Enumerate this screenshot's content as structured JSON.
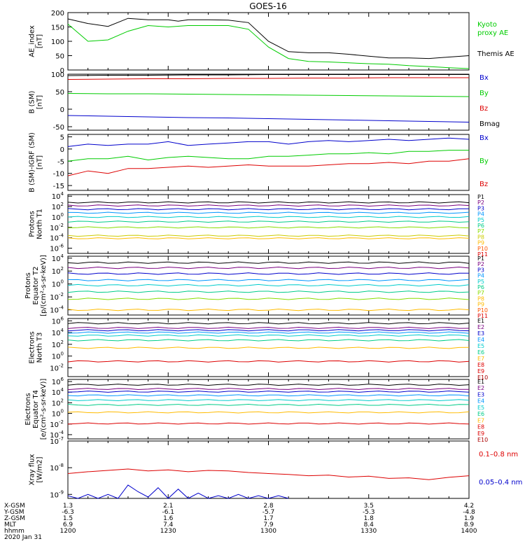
{
  "title": "GOES-16",
  "colors": {
    "black": "#000000",
    "red": "#dd0000",
    "green": "#00cc00",
    "blue": "#0000cc"
  },
  "time_axis": {
    "hhmm": [
      "1200",
      "1230",
      "1300",
      "1330",
      "1400"
    ],
    "footer_rows": [
      {
        "label": "X-GSM",
        "values": [
          "1.3",
          "2.1",
          "2.8",
          "3.5",
          "4.2"
        ]
      },
      {
        "label": "Y-GSM",
        "values": [
          "-6.3",
          "-6.1",
          "-5.7",
          "-5.3",
          "-4.8"
        ]
      },
      {
        "label": "Z-GSM",
        "values": [
          "1.5",
          "1.6",
          "1.7",
          "1.8",
          "1.9"
        ]
      },
      {
        "label": "MLT",
        "values": [
          "6.9",
          "7.4",
          "7.9",
          "8.4",
          "8.9"
        ]
      },
      {
        "label": "hhmm",
        "values": [
          "1200",
          "1230",
          "1300",
          "1330",
          "1400"
        ]
      }
    ],
    "date": "2020 Jan 31"
  },
  "chart_data": [
    {
      "type": "line",
      "ylabel": [
        "AE_index",
        "[nT]"
      ],
      "ylim": [
        0,
        200
      ],
      "yticks": [
        "0",
        "50",
        "100",
        "150",
        "200"
      ],
      "series": [
        {
          "name": "Themis AE",
          "color": "#000000",
          "x": [
            1200,
            1210,
            1220,
            1230,
            1240,
            1250,
            1255,
            1260,
            1270,
            1280,
            1290,
            1300,
            1310,
            1320,
            1330,
            1340,
            1350,
            1360,
            1370,
            1380,
            1390,
            1400
          ],
          "y": [
            178,
            162,
            152,
            180,
            175,
            175,
            170,
            175,
            175,
            174,
            165,
            100,
            64,
            60,
            60,
            55,
            48,
            42,
            42,
            40,
            45,
            50
          ]
        },
        {
          "name": "Kyoto proxy AE",
          "color": "#00cc00",
          "x": [
            1200,
            1210,
            1220,
            1230,
            1240,
            1250,
            1260,
            1270,
            1280,
            1290,
            1300,
            1310,
            1320,
            1330,
            1340,
            1350,
            1360,
            1370,
            1380,
            1390,
            1400
          ],
          "y": [
            160,
            100,
            105,
            135,
            155,
            150,
            155,
            155,
            155,
            142,
            80,
            40,
            30,
            28,
            25,
            22,
            20,
            15,
            12,
            8,
            5
          ]
        }
      ],
      "legend": [
        "Kyoto proxy AE",
        "Themis AE"
      ]
    },
    {
      "type": "line",
      "ylabel": [
        "B (SM)",
        "[nT]"
      ],
      "ylim": [
        -60,
        100
      ],
      "yticks": [
        "-50",
        "0",
        "50",
        "100"
      ],
      "series": [
        {
          "name": "Bx",
          "color": "#0000cc",
          "x": [
            1200,
            1220,
            1240,
            1260,
            1280,
            1300,
            1320,
            1340,
            1360,
            1380,
            1400
          ],
          "y": [
            -18,
            -20,
            -22,
            -24,
            -25,
            -27,
            -29,
            -31,
            -33,
            -35,
            -37
          ]
        },
        {
          "name": "By",
          "color": "#00cc00",
          "x": [
            1200,
            1220,
            1240,
            1260,
            1280,
            1300,
            1320,
            1340,
            1360,
            1380,
            1400
          ],
          "y": [
            45,
            44,
            44,
            43,
            42,
            41,
            40,
            39,
            38,
            37,
            36
          ]
        },
        {
          "name": "Bz",
          "color": "#dd0000",
          "x": [
            1200,
            1220,
            1240,
            1260,
            1280,
            1300,
            1320,
            1340,
            1360,
            1380,
            1400
          ],
          "y": [
            85,
            86,
            87,
            87,
            88,
            88,
            89,
            89,
            90,
            90,
            90
          ]
        },
        {
          "name": "Bmag",
          "color": "#000000",
          "x": [
            1200,
            1220,
            1240,
            1260,
            1280,
            1300,
            1320,
            1340,
            1360,
            1380,
            1400
          ],
          "y": [
            96,
            97,
            97,
            98,
            98,
            99,
            99,
            99,
            99,
            99,
            99
          ]
        }
      ],
      "legend": [
        "Bx",
        "By",
        "Bz",
        "Bmag"
      ]
    },
    {
      "type": "line",
      "ylabel": [
        "B (SM)-IGRF (SM)",
        "[nT]"
      ],
      "ylim": [
        -17,
        6
      ],
      "yticks": [
        "-15",
        "-10",
        "-5",
        "0",
        "5"
      ],
      "series": [
        {
          "name": "Bx",
          "color": "#0000cc",
          "x": [
            1200,
            1210,
            1220,
            1230,
            1240,
            1250,
            1260,
            1270,
            1280,
            1290,
            1300,
            1310,
            1320,
            1330,
            1340,
            1350,
            1360,
            1370,
            1380,
            1390,
            1400
          ],
          "y": [
            1,
            2,
            1.5,
            2,
            2,
            3,
            1.5,
            2,
            2.5,
            3,
            3,
            2,
            3,
            3.5,
            3,
            3.5,
            4,
            3.5,
            4,
            4.5,
            4
          ]
        },
        {
          "name": "By",
          "color": "#00cc00",
          "x": [
            1200,
            1210,
            1220,
            1230,
            1240,
            1250,
            1260,
            1270,
            1280,
            1290,
            1300,
            1310,
            1320,
            1330,
            1340,
            1350,
            1360,
            1370,
            1380,
            1390,
            1400
          ],
          "y": [
            -5,
            -4,
            -4,
            -3,
            -4.5,
            -3.5,
            -3,
            -3.5,
            -4,
            -4,
            -3,
            -3,
            -2.5,
            -2,
            -2,
            -1.5,
            -2,
            -1,
            -1,
            -0.5,
            -0.5
          ]
        },
        {
          "name": "Bz",
          "color": "#dd0000",
          "x": [
            1200,
            1210,
            1220,
            1230,
            1240,
            1250,
            1260,
            1270,
            1280,
            1290,
            1300,
            1310,
            1320,
            1330,
            1340,
            1350,
            1360,
            1370,
            1380,
            1390,
            1400
          ],
          "y": [
            -11,
            -9,
            -10,
            -8,
            -8,
            -7.5,
            -7,
            -7.5,
            -7,
            -6.5,
            -7,
            -7,
            -7,
            -6.5,
            -6,
            -6,
            -5.5,
            -6,
            -5,
            -5,
            -4
          ]
        }
      ],
      "legend": [
        "Bx",
        "By",
        "Bz"
      ]
    },
    {
      "type": "line",
      "scale": "log",
      "ylabel": [
        "Protons",
        "North T1"
      ],
      "yrange_log": [
        -7,
        4.3
      ],
      "yticks_exp": [
        "4",
        "2",
        "0",
        "-2",
        "-4",
        "-6"
      ],
      "series": [
        {
          "name": "P1",
          "color": "#000000",
          "levels": [
            2.8
          ]
        },
        {
          "name": "P2",
          "color": "#7a0080",
          "levels": [
            2.2
          ]
        },
        {
          "name": "P3",
          "color": "#0000cc",
          "levels": [
            1.5
          ]
        },
        {
          "name": "P4",
          "color": "#0096ff",
          "levels": [
            0.8
          ]
        },
        {
          "name": "P5",
          "color": "#00cccc",
          "levels": [
            0.0
          ]
        },
        {
          "name": "P6",
          "color": "#00cc88",
          "levels": [
            -0.9
          ]
        },
        {
          "name": "P7",
          "color": "#88dd00",
          "levels": [
            -2.0
          ]
        },
        {
          "name": "P8",
          "color": "#cccc00",
          "levels": [
            -3.6
          ]
        },
        {
          "name": "P9",
          "color": "#ffbb00",
          "levels": [
            -4.1
          ]
        }
      ],
      "legend": [
        "P1",
        "P2",
        "P3",
        "P4",
        "P5",
        "P6",
        "P7",
        "P8",
        "P9",
        "P10",
        "P11"
      ]
    },
    {
      "type": "line",
      "scale": "log",
      "ylabel": [
        "Protons",
        "Equator T2",
        "[p/(cm²-s-sr-keV)]"
      ],
      "yrange_log": [
        -4.8,
        4.3
      ],
      "yticks_exp": [
        "4",
        "2",
        "0",
        "-2",
        "-4"
      ],
      "series": [
        {
          "name": "P1",
          "color": "#000000",
          "levels": [
            3.3
          ]
        },
        {
          "name": "P2",
          "color": "#7a0080",
          "levels": [
            2.5
          ]
        },
        {
          "name": "P3",
          "color": "#0000cc",
          "levels": [
            1.6
          ]
        },
        {
          "name": "P4",
          "color": "#0096ff",
          "levels": [
            0.6
          ]
        },
        {
          "name": "P5",
          "color": "#00cccc",
          "levels": [
            -0.2
          ]
        },
        {
          "name": "P6",
          "color": "#00cc88",
          "levels": [
            -1.2
          ]
        },
        {
          "name": "P7",
          "color": "#88dd00",
          "levels": [
            -2.3
          ]
        },
        {
          "name": "P8",
          "color": "#ffbb00",
          "levels": [
            -4.0
          ]
        }
      ],
      "legend": [
        "P1",
        "P2",
        "P3",
        "P4",
        "P5",
        "P6",
        "P7",
        "P8",
        "P9",
        "P10",
        "P11"
      ]
    },
    {
      "type": "line",
      "scale": "log",
      "ylabel": [
        "Electrons",
        "North T3"
      ],
      "yrange_log": [
        -3.5,
        6.4
      ],
      "yticks_exp": [
        "6",
        "4",
        "2",
        "0",
        "-2"
      ],
      "series": [
        {
          "name": "E1",
          "color": "#000000",
          "levels": [
            5.6
          ]
        },
        {
          "name": "E2",
          "color": "#7a0080",
          "levels": [
            4.8
          ]
        },
        {
          "name": "E3",
          "color": "#0000cc",
          "levels": [
            4.4
          ]
        },
        {
          "name": "E4",
          "color": "#0096ff",
          "levels": [
            4.0
          ]
        },
        {
          "name": "E5",
          "color": "#00cccc",
          "levels": [
            3.5
          ]
        },
        {
          "name": "E6",
          "color": "#00cc88",
          "levels": [
            2.7
          ]
        },
        {
          "name": "E7",
          "color": "#ffbb00",
          "levels": [
            1.4
          ]
        },
        {
          "name": "E8",
          "color": "#dd0000",
          "levels": [
            -0.9
          ]
        }
      ],
      "legend": [
        "E1",
        "E2",
        "E3",
        "E4",
        "E5",
        "E6",
        "E7",
        "E8",
        "E9",
        "E10"
      ]
    },
    {
      "type": "line",
      "scale": "log",
      "ylabel": [
        "Electrons",
        "Equator T4",
        "[e/(cm²-s-sr-keV)]"
      ],
      "yrange_log": [
        -4.8,
        6.4
      ],
      "yticks_exp": [
        "6",
        "4",
        "2",
        "0",
        "-2",
        "-4"
      ],
      "series": [
        {
          "name": "E1",
          "color": "#000000",
          "levels": [
            5.4
          ]
        },
        {
          "name": "E2",
          "color": "#7a0080",
          "levels": [
            4.6
          ]
        },
        {
          "name": "E3",
          "color": "#0000cc",
          "levels": [
            4.1
          ]
        },
        {
          "name": "E4",
          "color": "#0096ff",
          "levels": [
            3.4
          ]
        },
        {
          "name": "E5",
          "color": "#00cccc",
          "levels": [
            2.5
          ]
        },
        {
          "name": "E6",
          "color": "#00cc88",
          "levels": [
            1.6
          ]
        },
        {
          "name": "E7",
          "color": "#ffbb00",
          "levels": [
            0.2
          ]
        },
        {
          "name": "E8",
          "color": "#dd0000",
          "levels": [
            -1.9
          ]
        }
      ],
      "legend": [
        "E1",
        "E2",
        "E3",
        "E4",
        "E5",
        "E6",
        "E7",
        "E8",
        "E9",
        "E10"
      ]
    },
    {
      "type": "line",
      "scale": "log",
      "ylabel": [
        "Xray flux",
        "[W/m2]"
      ],
      "yrange_log": [
        -9.15,
        -7
      ],
      "yticks_exp": [
        "-7",
        "-8",
        "-9"
      ],
      "series": [
        {
          "name": "0.1-0.8 nm",
          "color": "#dd0000",
          "x": [
            1200,
            1210,
            1220,
            1230,
            1240,
            1250,
            1260,
            1270,
            1280,
            1290,
            1300,
            1310,
            1320,
            1330,
            1340,
            1350,
            1360,
            1370,
            1380,
            1390,
            1400
          ],
          "y": [
            -8.22,
            -8.15,
            -8.1,
            -8.05,
            -8.12,
            -8.08,
            -8.15,
            -8.1,
            -8.12,
            -8.18,
            -8.22,
            -8.25,
            -8.3,
            -8.28,
            -8.35,
            -8.32,
            -8.4,
            -8.38,
            -8.45,
            -8.36,
            -8.3
          ]
        },
        {
          "name": "0.05-0.4 nm",
          "color": "#0000cc",
          "x": [
            1200,
            1205,
            1210,
            1215,
            1220,
            1225,
            1230,
            1235,
            1240,
            1245,
            1250,
            1255,
            1260,
            1265,
            1270,
            1275,
            1280,
            1285,
            1290,
            1295,
            1300,
            1305,
            1310
          ],
          "y": [
            -9.05,
            -9.15,
            -9.0,
            -9.15,
            -9.0,
            -9.15,
            -8.65,
            -8.9,
            -9.1,
            -8.75,
            -9.15,
            -8.8,
            -9.15,
            -8.95,
            -9.15,
            -9.05,
            -9.15,
            -9.0,
            -9.15,
            -9.05,
            -9.15,
            -9.05,
            -9.15
          ]
        }
      ],
      "legend": [
        "0.1–0.8 nm",
        "0.05–0.4 nm"
      ]
    }
  ]
}
